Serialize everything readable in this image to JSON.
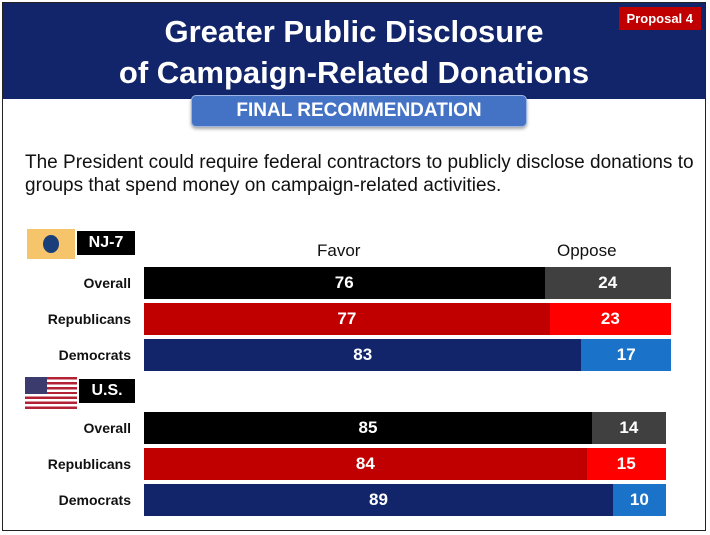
{
  "header": {
    "title_line1": "Greater Public Disclosure",
    "title_line2": "of Campaign-Related Donations",
    "badge": "Proposal 4",
    "subtitle": "FINAL RECOMMENDATION"
  },
  "description": "The President could require federal contractors to publicly disclose donations to groups that spend money on campaign-related activities.",
  "legend": {
    "favor": "Favor",
    "oppose": "Oppose"
  },
  "colors": {
    "header_bg": "#13256a",
    "overall_favor": "#000000",
    "overall_oppose": "#404040",
    "republicans_favor": "#c00000",
    "republicans_oppose": "#ff0000",
    "democrats_favor": "#13256a",
    "democrats_oppose": "#1a73c8"
  },
  "chart_data": {
    "type": "bar",
    "orientation": "horizontal",
    "stacked": true,
    "groups": [
      {
        "region": "NJ-7",
        "rows": [
          {
            "label": "Overall",
            "favor": 76,
            "oppose": 24
          },
          {
            "label": "Republicans",
            "favor": 77,
            "oppose": 23
          },
          {
            "label": "Democrats",
            "favor": 83,
            "oppose": 17
          }
        ]
      },
      {
        "region": "U.S.",
        "rows": [
          {
            "label": "Overall",
            "favor": 85,
            "oppose": 14
          },
          {
            "label": "Republicans",
            "favor": 84,
            "oppose": 15
          },
          {
            "label": "Democrats",
            "favor": 89,
            "oppose": 10
          }
        ]
      }
    ],
    "series": [
      "Favor",
      "Oppose"
    ],
    "xlim": [
      0,
      100
    ]
  }
}
